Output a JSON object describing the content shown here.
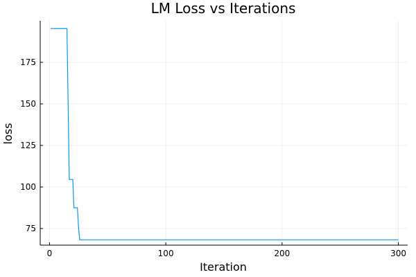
{
  "chart_data": {
    "type": "line",
    "title": "LM Loss vs Iterations",
    "xlabel": "Iteration",
    "ylabel": "loss",
    "xlim": [
      -8,
      308
    ],
    "ylim": [
      65,
      200
    ],
    "xticks": [
      0,
      100,
      200,
      300
    ],
    "yticks": [
      75,
      100,
      125,
      150,
      175
    ],
    "grid": true,
    "legend": "none",
    "color": "#009af9",
    "series": [
      {
        "x": [
          1,
          15,
          16,
          17,
          20,
          21,
          24,
          25,
          26,
          300
        ],
        "y": [
          195.3,
          195.3,
          150,
          104.5,
          104.5,
          87.5,
          87.5,
          75,
          68.2,
          68.2
        ]
      }
    ]
  }
}
